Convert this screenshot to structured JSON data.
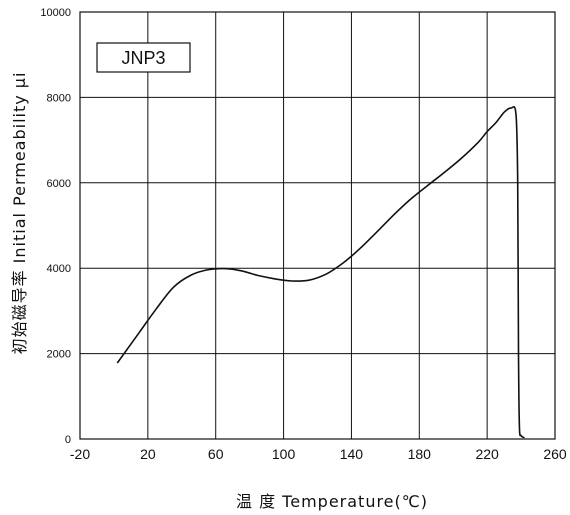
{
  "chart_data": {
    "type": "line",
    "title": "",
    "xlabel": "温 度  Temperature(℃)",
    "ylabel": "初始磁导率  Initial Permeability μi",
    "xlim": [
      -20,
      260
    ],
    "ylim": [
      0,
      10000
    ],
    "x_ticks": [
      -20,
      20,
      60,
      100,
      140,
      180,
      220,
      260
    ],
    "y_ticks": [
      0,
      2000,
      4000,
      6000,
      8000,
      10000
    ],
    "grid": true,
    "legend_position": "top-left",
    "series": [
      {
        "name": "JNP3",
        "x": [
          2,
          15,
          25,
          35,
          45,
          55,
          65,
          75,
          85,
          95,
          105,
          115,
          125,
          135,
          145,
          155,
          165,
          175,
          185,
          195,
          205,
          215,
          220,
          225,
          230,
          234,
          237,
          238,
          238.5,
          239,
          240,
          242
        ],
        "y": [
          1780,
          2500,
          3050,
          3550,
          3830,
          3960,
          3990,
          3940,
          3830,
          3750,
          3700,
          3720,
          3860,
          4120,
          4460,
          4850,
          5250,
          5620,
          5940,
          6250,
          6580,
          6960,
          7200,
          7400,
          7650,
          7750,
          7600,
          6000,
          2000,
          300,
          80,
          30
        ]
      }
    ]
  }
}
